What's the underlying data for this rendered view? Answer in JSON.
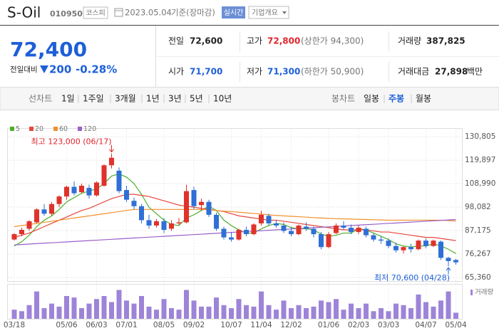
{
  "header": {
    "name": "S-Oil",
    "code": "010950",
    "market": "코스피",
    "date": "2023.05.04",
    "basis": "기준(장마감)",
    "realtime": "실시간",
    "overview": "기업개요"
  },
  "quote": {
    "price": "72,400",
    "change_label": "전일대비",
    "change": "200",
    "change_pct": "-0.28%",
    "prev_label": "전일",
    "prev": "72,600",
    "high_label": "고가",
    "high": "72,800",
    "upper_limit": "(상한가 94,300)",
    "volume_label": "거래량",
    "volume": "387,825",
    "open_label": "시가",
    "open": "71,700",
    "low_label": "저가",
    "low": "71,300",
    "lower_limit": "(하한가 50,900)",
    "amount_label": "거래대금",
    "amount": "27,898",
    "amount_unit": "백만"
  },
  "tabs": {
    "line_chart": "선차트",
    "periods": [
      "1일",
      "1주일",
      "3개월",
      "1년",
      "3년",
      "5년",
      "10년"
    ],
    "candle_chart": "봉차트",
    "candle_periods": [
      "일봉",
      "주봉",
      "월봉"
    ],
    "selected": "주봉"
  },
  "chart_data": {
    "type": "candlestick",
    "categories": [
      "03/18",
      null,
      null,
      null,
      null,
      null,
      null,
      "05/06",
      null,
      null,
      null,
      "06/03",
      null,
      null,
      null,
      "07/01",
      null,
      null,
      null,
      null,
      "08/05",
      null,
      null,
      null,
      "09/02",
      null,
      null,
      null,
      null,
      "10/07",
      null,
      null,
      null,
      "11/04",
      null,
      null,
      null,
      "12/02",
      null,
      null,
      null,
      null,
      "01/06",
      null,
      null,
      null,
      "02/03",
      null,
      null,
      null,
      "03/03",
      null,
      null,
      null,
      null,
      "04/07",
      null,
      null,
      null,
      "05/04"
    ],
    "ohlc": [
      [
        83000,
        86000,
        82500,
        85500
      ],
      [
        85500,
        88500,
        84500,
        87500
      ],
      [
        88000,
        92000,
        87000,
        91500
      ],
      [
        91000,
        97500,
        90500,
        97000
      ],
      [
        97000,
        99500,
        94000,
        95000
      ],
      [
        95000,
        100500,
        94000,
        99500
      ],
      [
        99500,
        103500,
        98000,
        103000
      ],
      [
        103000,
        108000,
        101500,
        107500
      ],
      [
        107500,
        110000,
        103500,
        104500
      ],
      [
        105000,
        109000,
        104500,
        108000
      ],
      [
        107000,
        108500,
        102000,
        103500
      ],
      [
        103500,
        110000,
        103000,
        109500
      ],
      [
        108000,
        118000,
        107500,
        117500
      ],
      [
        117500,
        123000,
        116000,
        121000
      ],
      [
        115000,
        116500,
        104500,
        105500
      ],
      [
        106000,
        108000,
        100500,
        101500
      ],
      [
        101000,
        102500,
        97000,
        98500
      ],
      [
        98500,
        99500,
        90500,
        92000
      ],
      [
        92000,
        94500,
        88000,
        89500
      ],
      [
        89500,
        92500,
        88500,
        91500
      ],
      [
        91500,
        93000,
        86000,
        87500
      ],
      [
        88000,
        92000,
        87000,
        90500
      ],
      [
        90500,
        93000,
        89500,
        91000
      ],
      [
        91000,
        108500,
        90500,
        105500
      ],
      [
        106000,
        107500,
        97000,
        98500
      ],
      [
        99000,
        102000,
        96500,
        100500
      ],
      [
        100500,
        101500,
        93500,
        94500
      ],
      [
        94500,
        95500,
        87000,
        88000
      ],
      [
        88000,
        89000,
        83000,
        84000
      ],
      [
        84000,
        86500,
        82000,
        83000
      ],
      [
        83000,
        88000,
        82500,
        87500
      ],
      [
        87500,
        89000,
        84500,
        85500
      ],
      [
        85500,
        90500,
        85000,
        90000
      ],
      [
        90500,
        96500,
        89500,
        94500
      ],
      [
        94000,
        95000,
        89500,
        90500
      ],
      [
        90500,
        92000,
        88500,
        89500
      ],
      [
        89500,
        91000,
        86000,
        87000
      ],
      [
        87000,
        89000,
        84500,
        85500
      ],
      [
        85500,
        90000,
        85000,
        89500
      ],
      [
        89000,
        91000,
        87000,
        88000
      ],
      [
        88000,
        89000,
        84000,
        85500
      ],
      [
        85500,
        86500,
        78500,
        79500
      ],
      [
        79500,
        86500,
        79000,
        85500
      ],
      [
        86000,
        90500,
        85500,
        89500
      ],
      [
        89500,
        91500,
        87500,
        88500
      ],
      [
        88500,
        90000,
        85500,
        86500
      ],
      [
        86500,
        89500,
        85500,
        88500
      ],
      [
        88000,
        89000,
        84000,
        85000
      ],
      [
        85000,
        86000,
        82000,
        83000
      ],
      [
        83000,
        84500,
        81000,
        82500
      ],
      [
        82500,
        83500,
        79000,
        80000
      ],
      [
        80000,
        81500,
        77000,
        78000
      ],
      [
        78000,
        80000,
        76500,
        79500
      ],
      [
        79500,
        81000,
        77000,
        78500
      ],
      [
        78500,
        83000,
        78000,
        82500
      ],
      [
        82500,
        83500,
        79000,
        80000
      ],
      [
        80000,
        83000,
        79500,
        82500
      ],
      [
        82000,
        82500,
        73500,
        74500
      ],
      [
        74500,
        75000,
        70600,
        73000
      ],
      [
        73500,
        74000,
        71300,
        72400
      ]
    ],
    "up_color": "#e0322b",
    "down_color": "#2f6fd6",
    "series": [
      {
        "name": "5",
        "color": "#4caf2a",
        "values": [
          80000,
          82000,
          85000,
          89000,
          92000,
          94000,
          97000,
          100500,
          102500,
          104500,
          105500,
          106500,
          109000,
          112500,
          113500,
          112000,
          109000,
          104000,
          98000,
          95000,
          92000,
          90000,
          89500,
          93000,
          94500,
          96500,
          98500,
          96500,
          92000,
          89500,
          87500,
          86000,
          86000,
          88000,
          89500,
          90500,
          90000,
          88500,
          88000,
          88000,
          87500,
          85500,
          84500,
          85000,
          86000,
          86000,
          88000,
          87500,
          86000,
          84500,
          83000,
          81000,
          80000,
          79500,
          80000,
          80000,
          81000,
          80000,
          78500,
          76500
        ]
      },
      {
        "name": "20",
        "color": "#e5473c",
        "values": [
          84000,
          85000,
          86000,
          87500,
          89000,
          90500,
          92000,
          93500,
          95000,
          96500,
          97500,
          99000,
          100500,
          102000,
          103000,
          104000,
          104000,
          103500,
          103000,
          102000,
          101000,
          100000,
          99000,
          98500,
          98000,
          97500,
          97000,
          96500,
          96000,
          95000,
          94000,
          93500,
          93000,
          92500,
          92000,
          92000,
          91500,
          91000,
          90500,
          90000,
          89500,
          89000,
          88500,
          88000,
          87500,
          87500,
          87500,
          87500,
          87000,
          86500,
          86500,
          86000,
          85500,
          85000,
          84500,
          84000,
          84000,
          83500,
          83000,
          82500
        ]
      },
      {
        "name": "60",
        "color": "#f0902a",
        "values": [
          89000,
          89500,
          90000,
          90500,
          91000,
          91500,
          92000,
          92500,
          93000,
          93500,
          94000,
          94500,
          95000,
          95500,
          96000,
          96500,
          97000,
          97000,
          97000,
          97000,
          97000,
          97000,
          97000,
          97000,
          97000,
          97000,
          96800,
          96500,
          96200,
          96000,
          95700,
          95400,
          95100,
          94800,
          94500,
          94200,
          94000,
          93800,
          93600,
          93400,
          93200,
          93000,
          92800,
          92700,
          92600,
          92500,
          92400,
          92300,
          92200,
          92100,
          92000,
          92000,
          92000,
          92000,
          92000,
          92000,
          92000,
          92000,
          91800,
          91600
        ]
      },
      {
        "name": "120",
        "color": "#9a5fc9",
        "values": [
          80500,
          80700,
          80900,
          81100,
          81300,
          81500,
          81700,
          81900,
          82100,
          82300,
          82500,
          82700,
          82900,
          83100,
          83300,
          83500,
          83700,
          83900,
          84100,
          84300,
          84500,
          84700,
          84900,
          85100,
          85300,
          85500,
          85700,
          85900,
          86100,
          86300,
          86500,
          86700,
          86900,
          87100,
          87300,
          87500,
          87700,
          87900,
          88100,
          88300,
          88500,
          88700,
          88900,
          89100,
          89300,
          89500,
          89700,
          89900,
          90100,
          90300,
          90500,
          90700,
          90900,
          91100,
          91300,
          91500,
          91700,
          91900,
          92100,
          92300
        ]
      }
    ],
    "ylim": [
      63700,
      134800
    ],
    "yticks": [
      {
        "value": 130805,
        "label": "130,805"
      },
      {
        "value": 119897,
        "label": "119,897"
      },
      {
        "value": 108990,
        "label": "108,990"
      },
      {
        "value": 98082,
        "label": "98,082"
      },
      {
        "value": 87175,
        "label": "87,175"
      },
      {
        "value": 76267,
        "label": "76,267"
      },
      {
        "value": 65360,
        "label": "65,360"
      }
    ],
    "grid": true,
    "high_annotation": "최고 123,000 (06/17)",
    "low_annotation": "최저 70,600 (04/28)",
    "volume": {
      "name": "거래량",
      "color": "#9d84d8",
      "ylim": [
        0,
        4500000
      ],
      "values": [
        1200000,
        1000000,
        1800000,
        3600000,
        1400000,
        2000000,
        1600000,
        3000000,
        2800000,
        1400000,
        2000000,
        2600000,
        3000000,
        2200000,
        3800000,
        2400000,
        2000000,
        3000000,
        1600000,
        1200000,
        2600000,
        1400000,
        1200000,
        3800000,
        2400000,
        1600000,
        1600000,
        2800000,
        1800000,
        1400000,
        2600000,
        1800000,
        1600000,
        3600000,
        1800000,
        1200000,
        2400000,
        1400000,
        1800000,
        1400000,
        1600000,
        2400000,
        2200000,
        2600000,
        1200000,
        2000000,
        1400000,
        2000000,
        1000000,
        1400000,
        1000000,
        2000000,
        1800000,
        1400000,
        3200000,
        2200000,
        1600000,
        2400000,
        3600000,
        800000
      ]
    }
  }
}
